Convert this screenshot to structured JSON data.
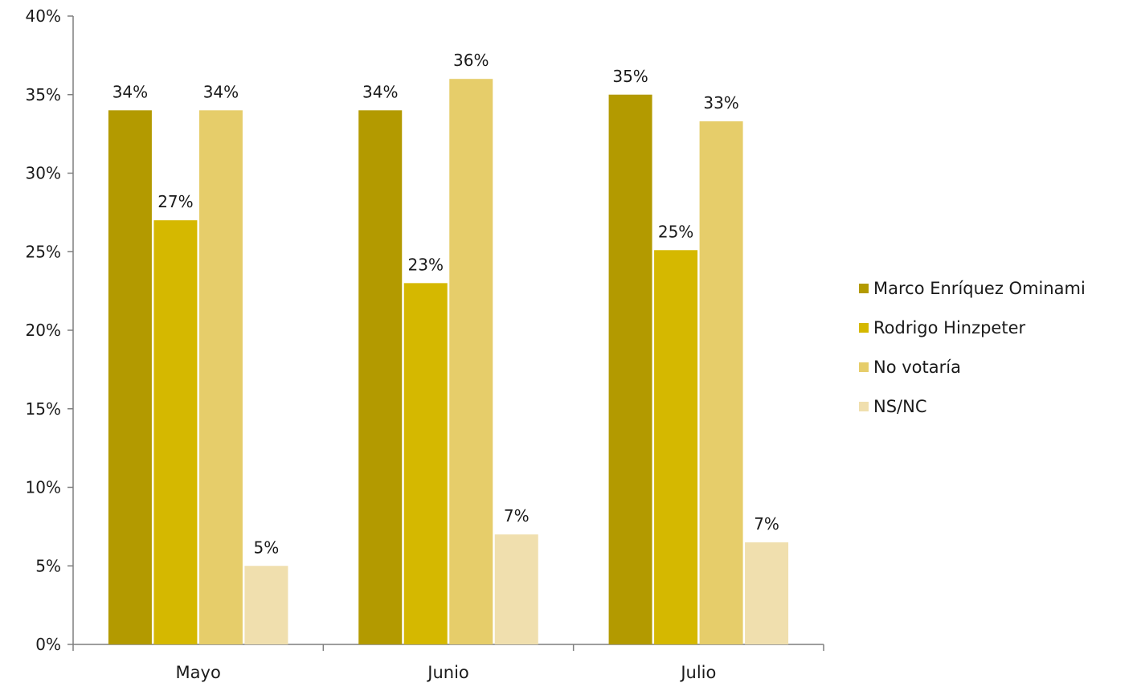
{
  "chart_data": {
    "type": "bar",
    "categories": [
      "Mayo",
      "Junio",
      "Julio"
    ],
    "series": [
      {
        "name": "Marco Enríquez Ominami",
        "color": "#b39a00",
        "values": [
          34,
          34,
          35
        ],
        "labels": [
          "34%",
          "34%",
          "35%"
        ]
      },
      {
        "name": "Rodrigo Hinzpeter",
        "color": "#d5b800",
        "values": [
          27,
          23,
          25.1
        ],
        "labels": [
          "27%",
          "23%",
          "25%"
        ]
      },
      {
        "name": "No votaría",
        "color": "#e6cd6a",
        "values": [
          34,
          36,
          33.3
        ],
        "labels": [
          "34%",
          "36%",
          "33%"
        ]
      },
      {
        "name": "NS/NC",
        "color": "#f0dfae",
        "values": [
          5,
          7,
          6.5
        ],
        "labels": [
          "5%",
          "7%",
          "7%"
        ]
      }
    ],
    "ylim": [
      0,
      40
    ],
    "yticks": [
      0,
      5,
      10,
      15,
      20,
      25,
      30,
      35,
      40
    ],
    "ytick_labels": [
      "0%",
      "5%",
      "10%",
      "15%",
      "20%",
      "25%",
      "30%",
      "35%",
      "40%"
    ],
    "grid": false,
    "legend_position": "right"
  }
}
